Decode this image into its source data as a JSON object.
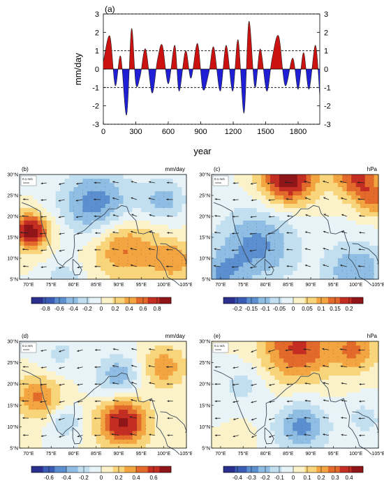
{
  "panel_a": {
    "label": "(a)",
    "ylabel": "mm/day",
    "xlabel": "year",
    "yticks_left": [
      "-3",
      "-2",
      "-1",
      "0",
      "1",
      "2",
      "3"
    ],
    "yticks_right": [
      "-3",
      "-2",
      "-1",
      "0",
      "1",
      "2",
      "3"
    ],
    "xticks": [
      "0",
      "300",
      "600",
      "900",
      "1200",
      "1500",
      "1800"
    ]
  },
  "maps": {
    "b": {
      "label": "(b)",
      "unit": "mm/day",
      "cbar": [
        "-0.8",
        "-0.6",
        "-0.4",
        "-0.2",
        "0",
        "0.2",
        "0.4",
        "0.6",
        "0.8"
      ]
    },
    "c": {
      "label": "(c)",
      "unit": "hPa",
      "cbar": [
        "-0.2",
        "-0.15",
        "-0.1",
        "-0.05",
        "0",
        "0.05",
        "0.1",
        "0.15",
        "0.2"
      ]
    },
    "d": {
      "label": "(d)",
      "unit": "mm/day",
      "cbar": [
        "-0.6",
        "-0.4",
        "-0.2",
        "0",
        "0.2",
        "0.4",
        "0.6"
      ]
    },
    "e": {
      "label": "(e)",
      "unit": "hPa",
      "cbar": [
        "-0.4",
        "-0.3",
        "-0.2",
        "-0.1",
        "0",
        "0.1",
        "0.2",
        "0.3",
        "0.4"
      ]
    }
  },
  "lat_labels": [
    "30°N",
    "25°N",
    "20°N",
    "15°N",
    "10°N",
    "5°N"
  ],
  "lon_labels": [
    "70°E",
    "75°E",
    "80°E",
    "85°E",
    "90°E",
    "95°E",
    "100°E",
    "105°E"
  ],
  "ref_vector": "0.1 m/s",
  "colors": {
    "positive": "#cc1111",
    "negative": "#1f1fd6"
  },
  "chart_data": {
    "type": "area",
    "x": [
      0,
      60,
      110,
      160,
      215,
      260,
      300,
      340,
      390,
      450,
      500,
      545,
      600,
      660,
      700,
      760,
      810,
      870,
      920,
      975,
      1020,
      1080,
      1135,
      1195,
      1245,
      1300,
      1345,
      1400,
      1450,
      1510,
      1560,
      1620,
      1680,
      1750,
      1800,
      1850,
      1900,
      1960,
      2000
    ],
    "y": [
      0.4,
      1.8,
      -0.9,
      0.7,
      -2.5,
      2.2,
      -0.8,
      -0.4,
      1.1,
      -1.3,
      0.5,
      1.3,
      -0.8,
      1.3,
      -1.2,
      1.0,
      -0.5,
      1.4,
      -1.1,
      -0.2,
      1.2,
      -1.2,
      1.3,
      -1.2,
      1.6,
      -2.4,
      2.6,
      -1.0,
      1.1,
      -1.2,
      0.6,
      1.8,
      -0.9,
      0.6,
      -1.1,
      0.9,
      -1.1,
      1.3,
      -1.5
    ],
    "xlim": [
      0,
      2000
    ],
    "ylim": [
      -3,
      3
    ],
    "xlabel": "year",
    "ylabel": "mm/day",
    "reference_lines": [
      -3,
      -1,
      1,
      3
    ]
  }
}
